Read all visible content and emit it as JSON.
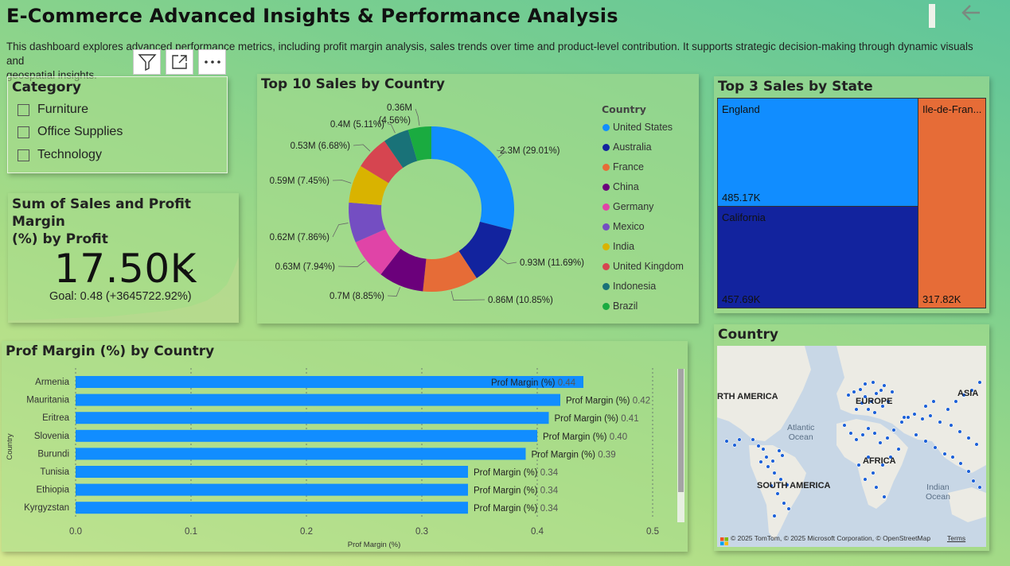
{
  "header": {
    "title": "E-Commerce Advanced Insights & Performance Analysis",
    "subtitle_line1": "This dashboard explores advanced performance metrics, including profit margin analysis, sales trends over time  and product-level contribution. It supports strategic decision-making through dynamic visuals and",
    "subtitle_line2": "geospatial insights."
  },
  "toolbar": {
    "filter_icon": "filter-icon",
    "focus_icon": "focus-mode-icon",
    "more_icon": "more-options-icon"
  },
  "category_slicer": {
    "title": "Category",
    "items": [
      "Furniture",
      "Office Supplies",
      "Technology"
    ]
  },
  "kpi": {
    "title_line1": "Sum of Sales and Profit Margin",
    "title_line2": "(%) by Profit",
    "value": "17.50K",
    "goal": "Goal: 0.48 (+3645722.92%)",
    "trend_icon": "check-icon"
  },
  "donut": {
    "title": "Top 10 Sales by Country",
    "legend_title": "Country"
  },
  "treemap": {
    "title": "Top 3 Sales by State",
    "cells": [
      {
        "name": "England",
        "value": "485.17K",
        "color": "#118dff"
      },
      {
        "name": "California",
        "value": "457.69K",
        "color": "#12239e"
      },
      {
        "name": "Ile-de-Fran...",
        "value": "317.82K",
        "color": "#e66c37"
      }
    ]
  },
  "map": {
    "title": "Country",
    "labels": {
      "north_america": "RTH AMERICA",
      "europe": "EUROPE",
      "asia": "ASIA",
      "africa": "AFRICA",
      "south_america": "SOUTH AMERICA",
      "atlantic1": "Atlantic",
      "atlantic2": "Ocean",
      "indian1": "Indian",
      "indian2": "Ocean"
    },
    "attribution": "© 2025 TomTom, © 2025 Microsoft Corporation, © OpenStreetMap",
    "terms": "Terms"
  },
  "bar": {
    "title": "Prof Margin (%) by Country",
    "measure_label": "Prof Margin (%)"
  },
  "chart_data": [
    {
      "type": "pie",
      "title": "Top 10 Sales by Country",
      "legend_title": "Country",
      "categories": [
        "United States",
        "Australia",
        "France",
        "China",
        "Germany",
        "Mexico",
        "India",
        "United Kingdom",
        "Indonesia",
        "Brazil"
      ],
      "values": [
        2.3,
        0.93,
        0.86,
        0.7,
        0.63,
        0.62,
        0.59,
        0.53,
        0.4,
        0.36
      ],
      "labels": [
        "2.3M (29.01%)",
        "0.93M (11.69%)",
        "0.86M (10.85%)",
        "0.7M (8.85%)",
        "0.63M (7.94%)",
        "0.62M (7.86%)",
        "0.59M (7.45%)",
        "0.53M (6.68%)",
        "0.4M (5.11%)",
        "0.36M (4.56%)"
      ],
      "percents": [
        29.01,
        11.69,
        10.85,
        8.85,
        7.94,
        7.86,
        7.45,
        6.68,
        5.11,
        4.56
      ],
      "colors": [
        "#118dff",
        "#12239e",
        "#e66c37",
        "#6b007b",
        "#e044a7",
        "#744ec2",
        "#d9b300",
        "#d64550",
        "#197278",
        "#1aab40"
      ],
      "legend": "right"
    },
    {
      "type": "bar",
      "orientation": "horizontal",
      "title": "Prof Margin (%) by Country",
      "categories": [
        "Armenia",
        "Mauritania",
        "Eritrea",
        "Slovenia",
        "Burundi",
        "Tunisia",
        "Ethiopia",
        "Kyrgyzstan"
      ],
      "values": [
        0.44,
        0.42,
        0.41,
        0.4,
        0.39,
        0.34,
        0.34,
        0.34
      ],
      "value_labels": [
        "0.44",
        "0.42",
        "0.41",
        "0.40",
        "0.39",
        "0.34",
        "0.34",
        "0.34"
      ],
      "xlabel": "Prof Margin (%)",
      "ylabel": "Country",
      "xlim": [
        0,
        0.5
      ],
      "xticks": [
        "0.0",
        "0.1",
        "0.2",
        "0.3",
        "0.4",
        "0.5"
      ],
      "grid": true,
      "color": "#118dff"
    }
  ]
}
